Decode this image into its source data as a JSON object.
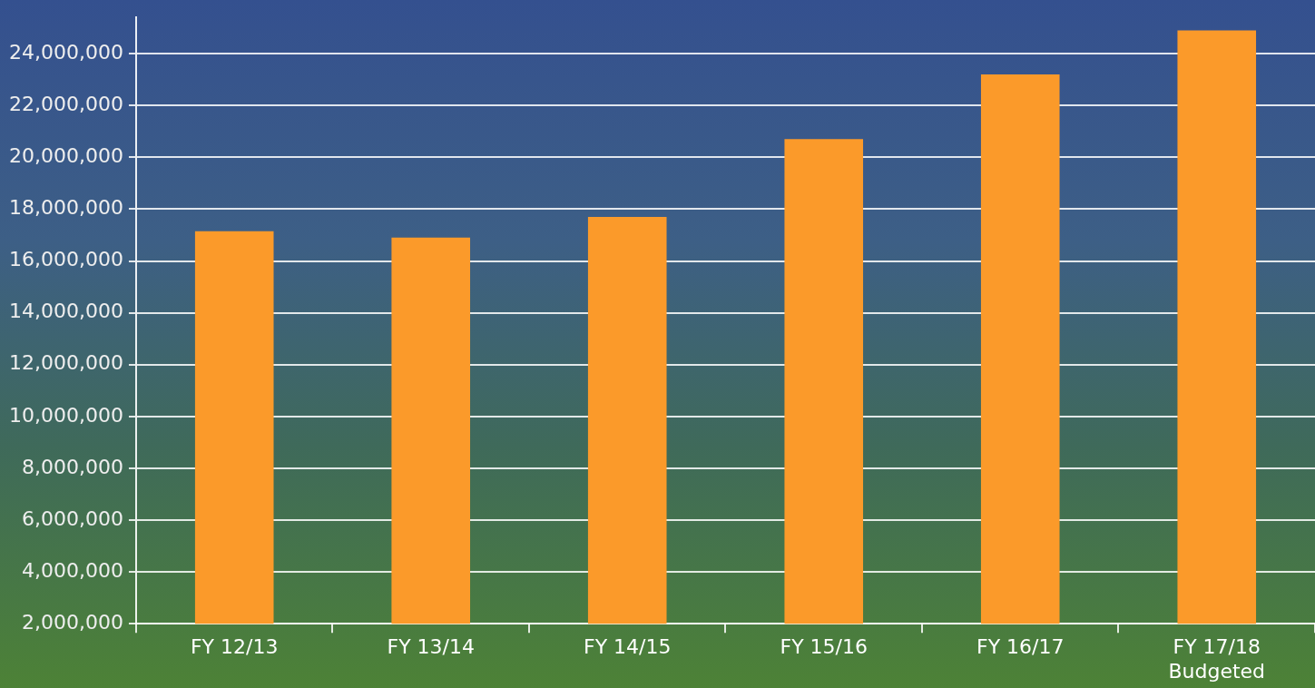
{
  "chart_data": {
    "type": "bar",
    "categories": [
      "FY 12/13",
      "FY 13/14",
      "FY 14/15",
      "FY 15/16",
      "FY 16/17",
      "FY 17/18\nBudgeted"
    ],
    "values": [
      17150000,
      16900000,
      17700000,
      20700000,
      23200000,
      24900000
    ],
    "color": "#fb9a2a",
    "ylim": [
      2000000,
      25400000
    ],
    "yticks": [
      {
        "value": 2000000,
        "label": "2,000,000"
      },
      {
        "value": 4000000,
        "label": "4,000,000"
      },
      {
        "value": 6000000,
        "label": "6,000,000"
      },
      {
        "value": 8000000,
        "label": "8,000,000"
      },
      {
        "value": 10000000,
        "label": "10,000,000"
      },
      {
        "value": 12000000,
        "label": "12,000,000"
      },
      {
        "value": 14000000,
        "label": "14,000,000"
      },
      {
        "value": 16000000,
        "label": "16,000,000"
      },
      {
        "value": 18000000,
        "label": "18,000,000"
      },
      {
        "value": 20000000,
        "label": "20,000,000"
      },
      {
        "value": 22000000,
        "label": "22,000,000"
      },
      {
        "value": 24000000,
        "label": "24,000,000"
      }
    ],
    "grid": "y",
    "legend": false
  }
}
